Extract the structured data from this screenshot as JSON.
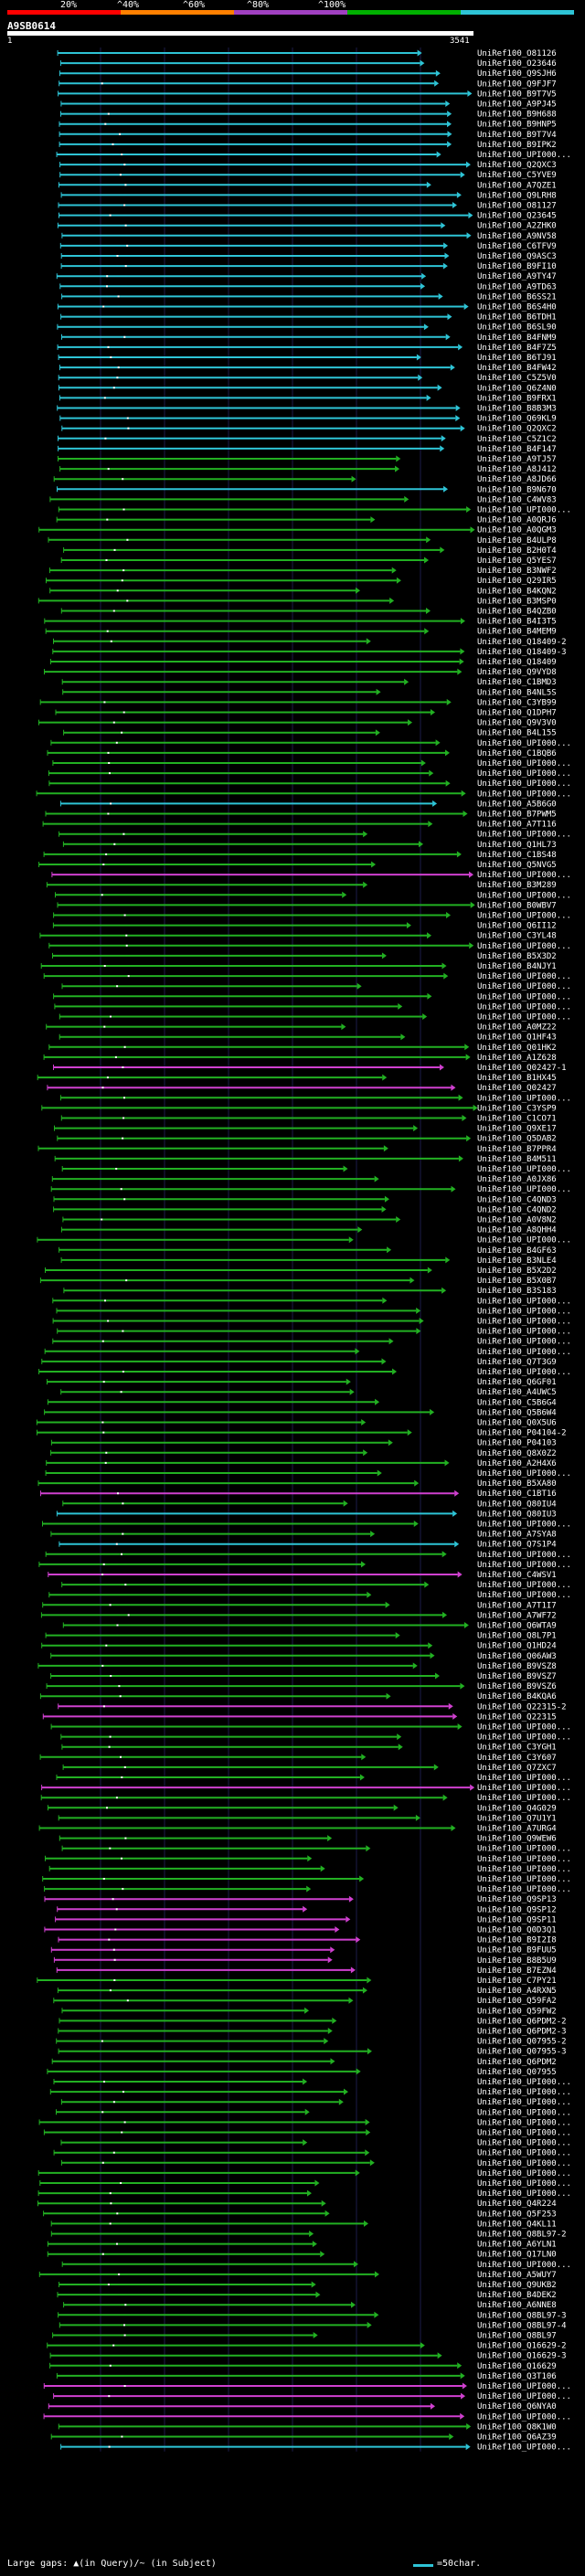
{
  "legend": {
    "labels": [
      "20%",
      "^40%",
      "^60%",
      "^80%",
      "^100%"
    ],
    "colors": [
      "#ff0000",
      "#ff8000",
      "#a040c0",
      "#00b000",
      "#2ec4d6"
    ]
  },
  "query": {
    "name": "A9SB0614",
    "start": "1",
    "end": "3541"
  },
  "chart_data": {
    "type": "alignment",
    "x_range": [
      1,
      3541
    ],
    "hits": [
      {
        "label": "UniRef100_O81126",
        "id": "cyan"
      },
      {
        "label": "UniRef100_O23646",
        "id": "cyan"
      },
      {
        "label": "UniRef100_Q9SJH6",
        "id": "cyan"
      },
      {
        "label": "UniRef100_Q9FJF7",
        "id": "cyan"
      },
      {
        "label": "UniRef100_B9T7V5",
        "id": "cyan"
      },
      {
        "label": "UniRef100_A9PJ45",
        "id": "cyan"
      },
      {
        "label": "UniRef100_B9H688",
        "id": "cyan"
      },
      {
        "label": "UniRef100_B9HNP5",
        "id": "cyan"
      },
      {
        "label": "UniRef100_B9T7V4",
        "id": "cyan"
      },
      {
        "label": "UniRef100_B9IPK2",
        "id": "cyan"
      },
      {
        "label": "UniRef100_UPI000...",
        "id": "cyan"
      },
      {
        "label": "UniRef100_Q2QXC3",
        "id": "cyan"
      },
      {
        "label": "UniRef100_C5YVE9",
        "id": "cyan"
      },
      {
        "label": "UniRef100_A7QZE1",
        "id": "cyan"
      },
      {
        "label": "UniRef100_Q9LRH8",
        "id": "cyan"
      },
      {
        "label": "UniRef100_O81127",
        "id": "cyan"
      },
      {
        "label": "UniRef100_Q23645",
        "id": "cyan"
      },
      {
        "label": "UniRef100_A2ZHK0",
        "id": "cyan"
      },
      {
        "label": "UniRef100_A9NV58",
        "id": "cyan"
      },
      {
        "label": "UniRef100_C6TFV9",
        "id": "cyan"
      },
      {
        "label": "UniRef100_Q9ASC3",
        "id": "cyan"
      },
      {
        "label": "UniRef100_B9FI10",
        "id": "cyan"
      },
      {
        "label": "UniRef100_A9TY47",
        "id": "cyan"
      },
      {
        "label": "UniRef100_A9TD63",
        "id": "cyan"
      },
      {
        "label": "UniRef100_B6SS21",
        "id": "cyan"
      },
      {
        "label": "UniRef100_B6S4H0",
        "id": "cyan"
      },
      {
        "label": "UniRef100_B6TDH1",
        "id": "cyan"
      },
      {
        "label": "UniRef100_B6SL90",
        "id": "cyan"
      },
      {
        "label": "UniRef100_B4FNM9",
        "id": "cyan"
      },
      {
        "label": "UniRef100_B4F7Z5",
        "id": "cyan"
      },
      {
        "label": "UniRef100_B6TJ91",
        "id": "cyan"
      },
      {
        "label": "UniRef100_B4FW42",
        "id": "cyan"
      },
      {
        "label": "UniRef100_C5Z5V0",
        "id": "cyan"
      },
      {
        "label": "UniRef100_Q6Z4N0",
        "id": "cyan"
      },
      {
        "label": "UniRef100_B9FRX1",
        "id": "cyan"
      },
      {
        "label": "UniRef100_B8B3M3",
        "id": "cyan"
      },
      {
        "label": "UniRef100_Q69KL9",
        "id": "cyan"
      },
      {
        "label": "UniRef100_Q2QXC2",
        "id": "cyan"
      },
      {
        "label": "UniRef100_C5Z1C2",
        "id": "cyan"
      },
      {
        "label": "UniRef100_B4F147",
        "id": "cyan"
      },
      {
        "label": "UniRef100_A9TJ57",
        "id": "green"
      },
      {
        "label": "UniRef100_A8J412",
        "id": "green"
      },
      {
        "label": "UniRef100_A8JD66",
        "id": "green"
      },
      {
        "label": "UniRef100_B9N670",
        "id": "cyan"
      },
      {
        "label": "UniRef100_C4WV83",
        "id": "green"
      },
      {
        "label": "UniRef100_UPI000...",
        "id": "green"
      },
      {
        "label": "UniRef100_A0QRJ6",
        "id": "green"
      },
      {
        "label": "UniRef100_A0QGM3",
        "id": "green"
      },
      {
        "label": "UniRef100_B4ULP8",
        "id": "green"
      },
      {
        "label": "UniRef100_B2H0T4",
        "id": "green"
      },
      {
        "label": "UniRef100_Q5YES7",
        "id": "green"
      },
      {
        "label": "UniRef100_B3NWF2",
        "id": "green"
      },
      {
        "label": "UniRef100_Q29IR5",
        "id": "green"
      },
      {
        "label": "UniRef100_B4KQN2",
        "id": "green"
      },
      {
        "label": "UniRef100_B3MSP0",
        "id": "green"
      },
      {
        "label": "UniRef100_B4QZB0",
        "id": "green"
      },
      {
        "label": "UniRef100_B4I3T5",
        "id": "green"
      },
      {
        "label": "UniRef100_B4MEM9",
        "id": "green"
      },
      {
        "label": "UniRef100_Q18409-2",
        "id": "green"
      },
      {
        "label": "UniRef100_Q18409-3",
        "id": "green"
      },
      {
        "label": "UniRef100_Q18409",
        "id": "green"
      },
      {
        "label": "UniRef100_Q9VYD8",
        "id": "green"
      },
      {
        "label": "UniRef100_C1BMD3",
        "id": "green"
      },
      {
        "label": "UniRef100_B4NL5S",
        "id": "green"
      },
      {
        "label": "UniRef100_C3YB99",
        "id": "green"
      },
      {
        "label": "UniRef100_Q1DPH7",
        "id": "green"
      },
      {
        "label": "UniRef100_Q9V3V0",
        "id": "green"
      },
      {
        "label": "UniRef100_B4L155",
        "id": "green"
      },
      {
        "label": "UniRef100_UPI000...",
        "id": "green"
      },
      {
        "label": "UniRef100_C1BQB6",
        "id": "green"
      },
      {
        "label": "UniRef100_UPI000...",
        "id": "green"
      },
      {
        "label": "UniRef100_UPI000...",
        "id": "green"
      },
      {
        "label": "UniRef100_UPI000...",
        "id": "green"
      },
      {
        "label": "UniRef100_UPI000...",
        "id": "green"
      },
      {
        "label": "UniRef100_A5B6G0",
        "id": "cyan"
      },
      {
        "label": "UniRef100_B7PWM5",
        "id": "green"
      },
      {
        "label": "UniRef100_A7T116",
        "id": "green"
      },
      {
        "label": "UniRef100_UPI000...",
        "id": "green"
      },
      {
        "label": "UniRef100_Q1HL73",
        "id": "green"
      },
      {
        "label": "UniRef100_C1BS48",
        "id": "green"
      },
      {
        "label": "UniRef100_Q5NVG5",
        "id": "green"
      },
      {
        "label": "UniRef100_UPI000...",
        "id": "magenta"
      },
      {
        "label": "UniRef100_B3M289",
        "id": "green"
      },
      {
        "label": "UniRef100_UPI000...",
        "id": "green"
      },
      {
        "label": "UniRef100_B0WBV7",
        "id": "green"
      },
      {
        "label": "UniRef100_UPI000...",
        "id": "green"
      },
      {
        "label": "UniRef100_Q6II12",
        "id": "green"
      },
      {
        "label": "UniRef100_C3YL48",
        "id": "green"
      },
      {
        "label": "UniRef100_UPI000...",
        "id": "green"
      },
      {
        "label": "UniRef100_B5X3D2",
        "id": "green"
      },
      {
        "label": "UniRef100_B4NJY1",
        "id": "green"
      },
      {
        "label": "UniRef100_UPI000...",
        "id": "green"
      },
      {
        "label": "UniRef100_UPI000...",
        "id": "green"
      },
      {
        "label": "UniRef100_UPI000...",
        "id": "green"
      },
      {
        "label": "UniRef100_UPI000...",
        "id": "green"
      },
      {
        "label": "UniRef100_UPI000...",
        "id": "green"
      },
      {
        "label": "UniRef100_A0MZ22",
        "id": "green"
      },
      {
        "label": "UniRef100_Q1HF43",
        "id": "green"
      },
      {
        "label": "UniRef100_Q01HK2",
        "id": "green"
      },
      {
        "label": "UniRef100_A1Z628",
        "id": "green"
      },
      {
        "label": "UniRef100_Q02427-1",
        "id": "magenta"
      },
      {
        "label": "UniRef100_B1HX45",
        "id": "green"
      },
      {
        "label": "UniRef100_Q02427",
        "id": "magenta"
      },
      {
        "label": "UniRef100_UPI000...",
        "id": "green"
      },
      {
        "label": "UniRef100_C3YSP9",
        "id": "green"
      },
      {
        "label": "UniRef100_C1CO71",
        "id": "green"
      },
      {
        "label": "UniRef100_Q9XE17",
        "id": "green"
      },
      {
        "label": "UniRef100_Q5DAB2",
        "id": "green"
      },
      {
        "label": "UniRef100_B7PPR4",
        "id": "green"
      },
      {
        "label": "UniRef100_B4M511",
        "id": "green"
      },
      {
        "label": "UniRef100_UPI000...",
        "id": "green"
      },
      {
        "label": "UniRef100_A0JX86",
        "id": "green"
      },
      {
        "label": "UniRef100_UPI000...",
        "id": "green"
      },
      {
        "label": "UniRef100_C4QND3",
        "id": "green"
      },
      {
        "label": "UniRef100_C4QND2",
        "id": "green"
      },
      {
        "label": "UniRef100_A0V8N2",
        "id": "green"
      },
      {
        "label": "UniRef100_A8QHH4",
        "id": "green"
      },
      {
        "label": "UniRef100_UPI000...",
        "id": "green"
      },
      {
        "label": "UniRef100_B4GF63",
        "id": "green"
      },
      {
        "label": "UniRef100_B3NLE4",
        "id": "green"
      },
      {
        "label": "UniRef100_B5X2D2",
        "id": "green"
      },
      {
        "label": "UniRef100_B5X0B7",
        "id": "green"
      },
      {
        "label": "UniRef100_B3S183",
        "id": "green"
      },
      {
        "label": "UniRef100_UPI000...",
        "id": "green"
      },
      {
        "label": "UniRef100_UPI000...",
        "id": "green"
      },
      {
        "label": "UniRef100_UPI000...",
        "id": "green"
      },
      {
        "label": "UniRef100_UPI000...",
        "id": "green"
      },
      {
        "label": "UniRef100_UPI000...",
        "id": "green"
      },
      {
        "label": "UniRef100_UPI000...",
        "id": "green"
      },
      {
        "label": "UniRef100_Q7T3G9",
        "id": "green"
      },
      {
        "label": "UniRef100_UPI000...",
        "id": "green"
      },
      {
        "label": "UniRef100_Q6GF01",
        "id": "green"
      },
      {
        "label": "UniRef100_A4UWC5",
        "id": "green"
      },
      {
        "label": "UniRef100_C5B6G4",
        "id": "green"
      },
      {
        "label": "UniRef100_Q5B6W4",
        "id": "green"
      },
      {
        "label": "UniRef100_Q0X5U6",
        "id": "green"
      },
      {
        "label": "UniRef100_P04104-2",
        "id": "green"
      },
      {
        "label": "UniRef100_P04103",
        "id": "green"
      },
      {
        "label": "UniRef100_Q8X0Z2",
        "id": "green"
      },
      {
        "label": "UniRef100_A2H4X6",
        "id": "green"
      },
      {
        "label": "UniRef100_UPI000...",
        "id": "green"
      },
      {
        "label": "UniRef100_B5XA80",
        "id": "green"
      },
      {
        "label": "UniRef100_C1BT16",
        "id": "magenta"
      },
      {
        "label": "UniRef100_Q80IU4",
        "id": "green"
      },
      {
        "label": "UniRef100_Q80IU3",
        "id": "cyan"
      },
      {
        "label": "UniRef100_UPI000...",
        "id": "green"
      },
      {
        "label": "UniRef100_A7SYA8",
        "id": "green"
      },
      {
        "label": "UniRef100_Q7S1P4",
        "id": "cyan"
      },
      {
        "label": "UniRef100_UPI000...",
        "id": "green"
      },
      {
        "label": "UniRef100_UPI000...",
        "id": "green"
      },
      {
        "label": "UniRef100_C4WSV1",
        "id": "magenta"
      },
      {
        "label": "UniRef100_UPI000...",
        "id": "green"
      },
      {
        "label": "UniRef100_UPI000...",
        "id": "green"
      },
      {
        "label": "UniRef100_A7T1I7",
        "id": "green"
      },
      {
        "label": "UniRef100_A7WF72",
        "id": "green"
      },
      {
        "label": "UniRef100_Q6WTA9",
        "id": "green"
      },
      {
        "label": "UniRef100_Q8L7P1",
        "id": "green"
      },
      {
        "label": "UniRef100_Q1HD24",
        "id": "green"
      },
      {
        "label": "UniRef100_Q06AW3",
        "id": "green"
      },
      {
        "label": "UniRef100_B9VSZ8",
        "id": "green"
      },
      {
        "label": "UniRef100_B9VSZ7",
        "id": "green"
      },
      {
        "label": "UniRef100_B9VSZ6",
        "id": "green"
      },
      {
        "label": "UniRef100_B4KQA6",
        "id": "green"
      },
      {
        "label": "UniRef100_Q22315-2",
        "id": "magenta"
      },
      {
        "label": "UniRef100_Q22315",
        "id": "magenta"
      },
      {
        "label": "UniRef100_UPI000...",
        "id": "green"
      },
      {
        "label": "UniRef100_UPI000...",
        "id": "green"
      },
      {
        "label": "UniRef100_C3YGH1",
        "id": "green"
      },
      {
        "label": "UniRef100_C3Y607",
        "id": "green"
      },
      {
        "label": "UniRef100_Q7ZXC7",
        "id": "green"
      },
      {
        "label": "UniRef100_UPI000...",
        "id": "green"
      },
      {
        "label": "UniRef100_UPI000...",
        "id": "magenta"
      },
      {
        "label": "UniRef100_UPI000...",
        "id": "green"
      },
      {
        "label": "UniRef100_Q4G029",
        "id": "green"
      },
      {
        "label": "UniRef100_Q7U1Y1",
        "id": "green"
      },
      {
        "label": "UniRef100_A7URG4",
        "id": "green"
      },
      {
        "label": "UniRef100_Q9WEW6",
        "id": "green"
      },
      {
        "label": "UniRef100_UPI000...",
        "id": "green"
      },
      {
        "label": "UniRef100_UPI000...",
        "id": "green"
      },
      {
        "label": "UniRef100_UPI000...",
        "id": "green"
      },
      {
        "label": "UniRef100_UPI000...",
        "id": "green"
      },
      {
        "label": "UniRef100_UPI000...",
        "id": "green"
      },
      {
        "label": "UniRef100_Q9SP13",
        "id": "magenta"
      },
      {
        "label": "UniRef100_Q9SP12",
        "id": "magenta"
      },
      {
        "label": "UniRef100_Q9SP11",
        "id": "magenta"
      },
      {
        "label": "UniRef100_Q0D3Q1",
        "id": "magenta"
      },
      {
        "label": "UniRef100_B9I2I8",
        "id": "magenta"
      },
      {
        "label": "UniRef100_B9FUU5",
        "id": "magenta"
      },
      {
        "label": "UniRef100_B8B5U9",
        "id": "magenta"
      },
      {
        "label": "UniRef100_B7EZN4",
        "id": "magenta"
      },
      {
        "label": "UniRef100_C7PY21",
        "id": "green"
      },
      {
        "label": "UniRef100_A4RXN5",
        "id": "green"
      },
      {
        "label": "UniRef100_Q59FA2",
        "id": "green"
      },
      {
        "label": "UniRef100_Q59FW2",
        "id": "green"
      },
      {
        "label": "UniRef100_Q6PDM2-2",
        "id": "green"
      },
      {
        "label": "UniRef100_Q6PDM2-3",
        "id": "green"
      },
      {
        "label": "UniRef100_Q07955-2",
        "id": "green"
      },
      {
        "label": "UniRef100_Q07955-3",
        "id": "green"
      },
      {
        "label": "UniRef100_Q6PDM2",
        "id": "green"
      },
      {
        "label": "UniRef100_Q07955",
        "id": "green"
      },
      {
        "label": "UniRef100_UPI000...",
        "id": "green"
      },
      {
        "label": "UniRef100_UPI000...",
        "id": "green"
      },
      {
        "label": "UniRef100_UPI000...",
        "id": "green"
      },
      {
        "label": "UniRef100_UPI000...",
        "id": "green"
      },
      {
        "label": "UniRef100_UPI000...",
        "id": "green"
      },
      {
        "label": "UniRef100_UPI000...",
        "id": "green"
      },
      {
        "label": "UniRef100_UPI000...",
        "id": "green"
      },
      {
        "label": "UniRef100_UPI000...",
        "id": "green"
      },
      {
        "label": "UniRef100_UPI000...",
        "id": "green"
      },
      {
        "label": "UniRef100_UPI000...",
        "id": "green"
      },
      {
        "label": "UniRef100_UPI000...",
        "id": "green"
      },
      {
        "label": "UniRef100_UPI000...",
        "id": "green"
      },
      {
        "label": "UniRef100_Q4R224",
        "id": "green"
      },
      {
        "label": "UniRef100_Q5F253",
        "id": "green"
      },
      {
        "label": "UniRef100_Q4KL11",
        "id": "green"
      },
      {
        "label": "UniRef100_Q8BL97-2",
        "id": "green"
      },
      {
        "label": "UniRef100_A6YLN1",
        "id": "green"
      },
      {
        "label": "UniRef100_Q17LN0",
        "id": "green"
      },
      {
        "label": "UniRef100_UPI000...",
        "id": "green"
      },
      {
        "label": "UniRef100_A5WUY7",
        "id": "green"
      },
      {
        "label": "UniRef100_Q9UKB2",
        "id": "green"
      },
      {
        "label": "UniRef100_B4DEK2",
        "id": "green"
      },
      {
        "label": "UniRef100_A6NNE8",
        "id": "green"
      },
      {
        "label": "UniRef100_Q8BL97-3",
        "id": "green"
      },
      {
        "label": "UniRef100_Q8BL97-4",
        "id": "green"
      },
      {
        "label": "UniRef100_Q8BL97",
        "id": "green"
      },
      {
        "label": "UniRef100_Q16629-2",
        "id": "green"
      },
      {
        "label": "UniRef100_Q16629-3",
        "id": "green"
      },
      {
        "label": "UniRef100_Q16629",
        "id": "green"
      },
      {
        "label": "UniRef100_Q3T106",
        "id": "green"
      },
      {
        "label": "UniRef100_UPI000...",
        "id": "magenta"
      },
      {
        "label": "UniRef100_UPI000...",
        "id": "magenta"
      },
      {
        "label": "UniRef100_Q6NYA0",
        "id": "magenta"
      },
      {
        "label": "UniRef100_UPI000...",
        "id": "magenta"
      },
      {
        "label": "UniRef100_Q8K1W0",
        "id": "green"
      },
      {
        "label": "UniRef100_Q6AZ39",
        "id": "green"
      },
      {
        "label": "UniRef100_UPI000...",
        "id": "cyan"
      }
    ]
  },
  "footer": {
    "gap_text": "Large gaps: ▲(in Query)/~ (in Subject)",
    "scale_text": "=50char."
  }
}
